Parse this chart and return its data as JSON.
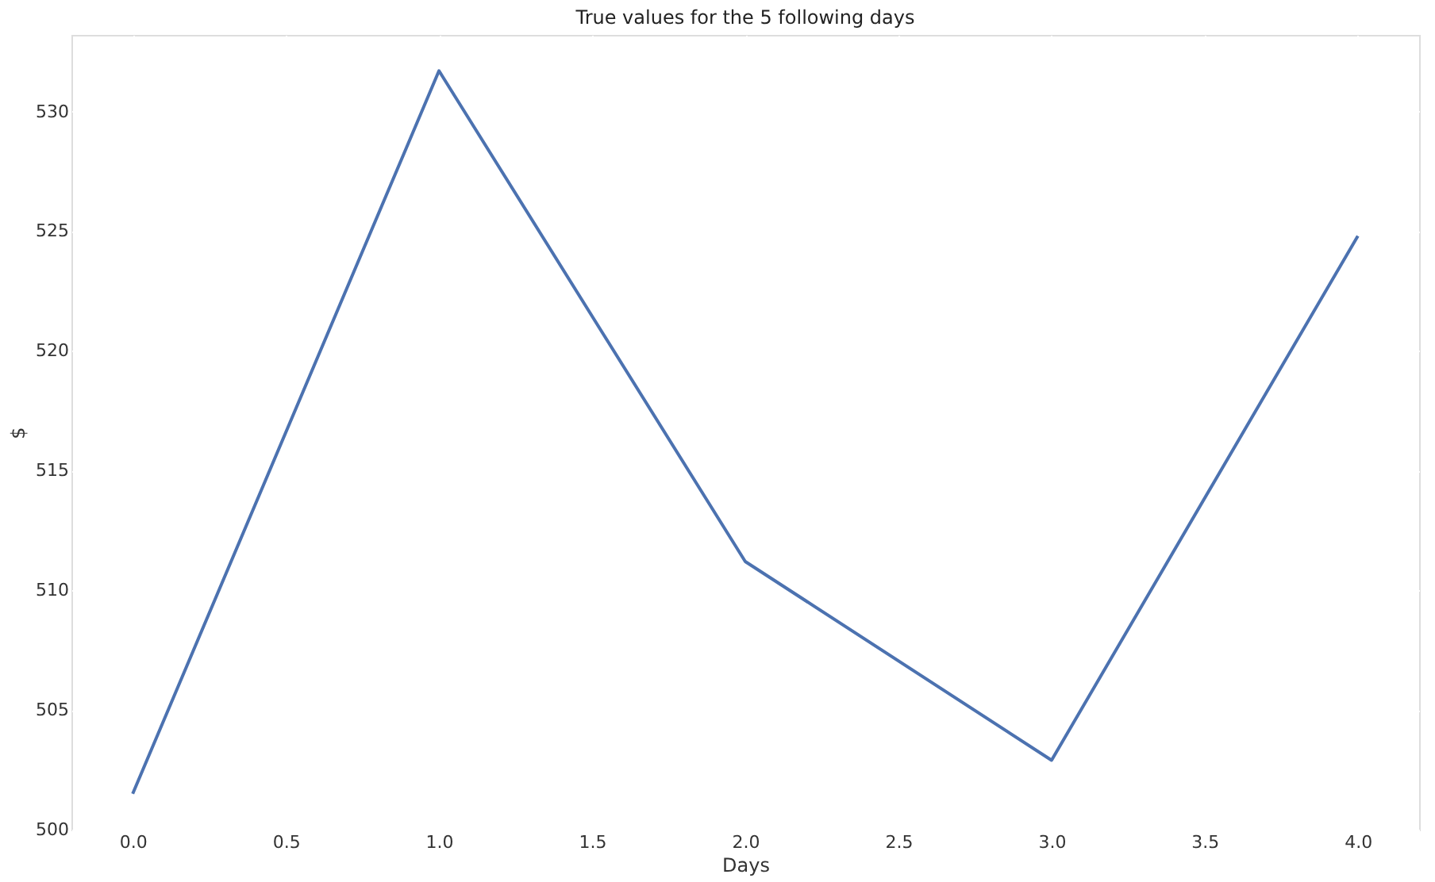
{
  "chart_data": {
    "type": "line",
    "title": "True values for the 5 following days",
    "xlabel": "Days",
    "ylabel": "$",
    "x": [
      0,
      1,
      2,
      3,
      4
    ],
    "series": [
      {
        "color": "#4c72b0",
        "values": [
          501.5,
          531.7,
          511.2,
          502.9,
          524.8
        ]
      }
    ],
    "xlim": [
      -0.2,
      4.2
    ],
    "xticks": [
      {
        "value": 0,
        "label": "0.0"
      },
      {
        "value": 0.5,
        "label": "0.5"
      },
      {
        "value": 1,
        "label": "1.0"
      },
      {
        "value": 1.5,
        "label": "1.5"
      },
      {
        "value": 2,
        "label": "2.0"
      },
      {
        "value": 2.5,
        "label": "2.5"
      },
      {
        "value": 3,
        "label": "3.0"
      },
      {
        "value": 3.5,
        "label": "3.5"
      },
      {
        "value": 4,
        "label": "4.0"
      }
    ],
    "ylim": [
      500,
      533.2
    ],
    "yticks": [
      500,
      505,
      510,
      515,
      520,
      525,
      530
    ],
    "grid": true,
    "marker": "none",
    "line_style": "solid"
  }
}
